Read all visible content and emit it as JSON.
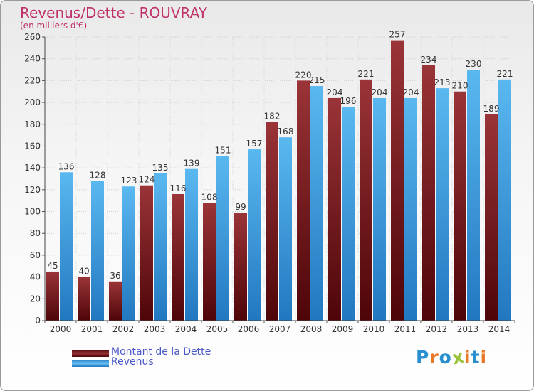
{
  "chart_data": {
    "type": "bar",
    "title": "Revenus/Dette - ROUVRAY",
    "subtitle": "(en milliers d'€)",
    "categories": [
      "2000",
      "2001",
      "2002",
      "2003",
      "2004",
      "2005",
      "2006",
      "2007",
      "2008",
      "2009",
      "2010",
      "2011",
      "2012",
      "2013",
      "2014"
    ],
    "series": [
      {
        "name": "Montant de la Dette",
        "color": "#7b1a1e",
        "values": [
          45,
          40,
          36,
          124,
          116,
          108,
          99,
          182,
          220,
          204,
          221,
          257,
          234,
          210,
          189
        ]
      },
      {
        "name": "Revenus",
        "color": "#3d9ee0",
        "values": [
          136,
          128,
          123,
          135,
          139,
          151,
          157,
          168,
          215,
          196,
          204,
          204,
          213,
          230,
          221
        ]
      }
    ],
    "ylim": [
      0,
      260
    ],
    "yticks": [
      0,
      20,
      40,
      60,
      80,
      100,
      120,
      140,
      160,
      180,
      200,
      220,
      240,
      260
    ],
    "grid": true,
    "legend_position": "bottom-left"
  },
  "logo": {
    "text": "Proxiti",
    "colors": [
      "#2a8fd0",
      "#e8782a",
      "#2a8fd0",
      "#9bc33b",
      "#e8782a",
      "#2a8fd0",
      "#e8782a"
    ]
  }
}
